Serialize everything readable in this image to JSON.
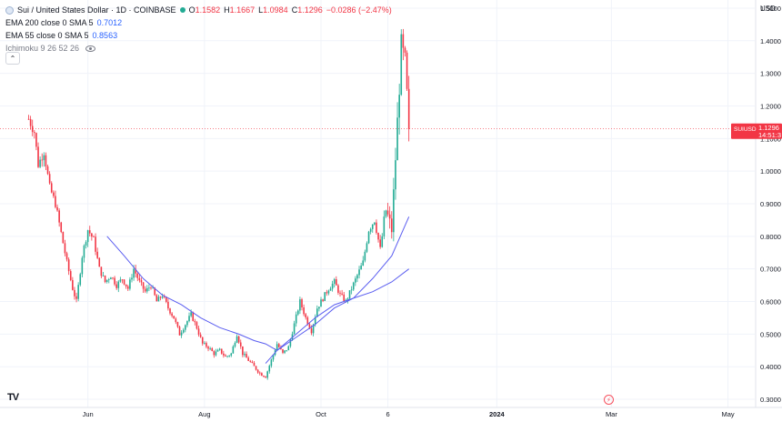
{
  "header": {
    "symbol": "Sui / United States Dollar · 1D · COINBASE",
    "ohlc": [
      {
        "label": "O",
        "value": "1.1582"
      },
      {
        "label": "H",
        "value": "1.1667"
      },
      {
        "label": "L",
        "value": "1.0984"
      },
      {
        "label": "C",
        "value": "1.1296"
      }
    ],
    "change": "−0.0286 (−2.47%)"
  },
  "indicators": [
    {
      "name": "EMA 200 close 0 SMA 5",
      "value": "0.7012"
    },
    {
      "name": "EMA 55 close 0 SMA 5",
      "value": "0.8563"
    },
    {
      "name": "Ichimoku 9 26 52 26",
      "value": ""
    }
  ],
  "currency_label": "USD",
  "price_tag": {
    "symbol": "SUIUSD",
    "price": "1.1296",
    "countdown": "14:51:3"
  },
  "logo_text": "TV",
  "colors": {
    "up": "#22ab94",
    "down": "#f23645",
    "ema": "#5b5ef0",
    "grid": "#f0f3fa",
    "axis_text": "#131722"
  },
  "chart_data": {
    "type": "candlestick",
    "title": "Sui / United States Dollar · 1D · COINBASE",
    "ylim": [
      0.275,
      1.525
    ],
    "yscale": "linear",
    "y_ticks": [
      "1.5000",
      "1.4000",
      "1.3000",
      "1.2000",
      "1.1000",
      "1.0000",
      "0.9000",
      "0.8000",
      "0.7000",
      "0.6000",
      "0.5000",
      "0.4000",
      "0.3000"
    ],
    "y_tick_values": [
      1.5,
      1.4,
      1.3,
      1.2,
      1.1,
      1.0,
      0.9,
      0.8,
      0.7,
      0.6,
      0.5,
      0.4,
      0.3
    ],
    "x_ticks": [
      "Jun",
      "Aug",
      "Oct",
      "6",
      "2024",
      "Mar",
      "May"
    ],
    "x_tick_days": [
      31,
      92,
      153,
      188,
      245,
      305,
      366
    ],
    "x_range_days": [
      -15,
      380
    ],
    "last_price": 1.1296,
    "price_path": [
      [
        0,
        1.16
      ],
      [
        3,
        1.12
      ],
      [
        5,
        1.02
      ],
      [
        8,
        1.06
      ],
      [
        11,
        0.95
      ],
      [
        14,
        0.9
      ],
      [
        17,
        0.81
      ],
      [
        20,
        0.72
      ],
      [
        23,
        0.64
      ],
      [
        25,
        0.6
      ],
      [
        28,
        0.74
      ],
      [
        31,
        0.82
      ],
      [
        34,
        0.79
      ],
      [
        37,
        0.7
      ],
      [
        40,
        0.66
      ],
      [
        43,
        0.68
      ],
      [
        46,
        0.65
      ],
      [
        49,
        0.67
      ],
      [
        52,
        0.64
      ],
      [
        55,
        0.7
      ],
      [
        58,
        0.66
      ],
      [
        61,
        0.63
      ],
      [
        64,
        0.65
      ],
      [
        67,
        0.6
      ],
      [
        70,
        0.62
      ],
      [
        73,
        0.58
      ],
      [
        76,
        0.55
      ],
      [
        79,
        0.5
      ],
      [
        82,
        0.53
      ],
      [
        85,
        0.56
      ],
      [
        88,
        0.52
      ],
      [
        91,
        0.47
      ],
      [
        94,
        0.46
      ],
      [
        97,
        0.44
      ],
      [
        100,
        0.45
      ],
      [
        103,
        0.43
      ],
      [
        106,
        0.44
      ],
      [
        109,
        0.5
      ],
      [
        112,
        0.44
      ],
      [
        115,
        0.42
      ],
      [
        118,
        0.4
      ],
      [
        121,
        0.38
      ],
      [
        124,
        0.37
      ],
      [
        127,
        0.42
      ],
      [
        130,
        0.47
      ],
      [
        133,
        0.44
      ],
      [
        136,
        0.46
      ],
      [
        139,
        0.53
      ],
      [
        142,
        0.6
      ],
      [
        145,
        0.55
      ],
      [
        148,
        0.51
      ],
      [
        151,
        0.58
      ],
      [
        154,
        0.61
      ],
      [
        157,
        0.64
      ],
      [
        160,
        0.66
      ],
      [
        163,
        0.62
      ],
      [
        166,
        0.6
      ],
      [
        169,
        0.64
      ],
      [
        172,
        0.68
      ],
      [
        175,
        0.72
      ],
      [
        178,
        0.82
      ],
      [
        181,
        0.85
      ],
      [
        184,
        0.76
      ],
      [
        187,
        0.88
      ],
      [
        190,
        0.82
      ],
      [
        193,
        1.15
      ],
      [
        195,
        1.38
      ],
      [
        197,
        1.33
      ],
      [
        199,
        1.13
      ]
    ],
    "series": [
      {
        "name": "EMA 200 close 0 SMA 5",
        "color": "#5b5ef0",
        "points": [
          [
            124,
            0.41
          ],
          [
            130,
            0.45
          ],
          [
            140,
            0.5
          ],
          [
            150,
            0.55
          ],
          [
            160,
            0.59
          ],
          [
            170,
            0.61
          ],
          [
            180,
            0.63
          ],
          [
            190,
            0.66
          ],
          [
            199,
            0.7
          ]
        ]
      },
      {
        "name": "EMA 55 close 0 SMA 5",
        "color": "#5b5ef0",
        "points": [
          [
            41,
            0.8
          ],
          [
            50,
            0.74
          ],
          [
            60,
            0.67
          ],
          [
            70,
            0.62
          ],
          [
            80,
            0.59
          ],
          [
            90,
            0.55
          ],
          [
            100,
            0.52
          ],
          [
            110,
            0.5
          ],
          [
            118,
            0.48
          ],
          [
            124,
            0.47
          ],
          [
            130,
            0.45
          ],
          [
            140,
            0.49
          ],
          [
            150,
            0.53
          ],
          [
            160,
            0.58
          ],
          [
            170,
            0.61
          ],
          [
            180,
            0.67
          ],
          [
            190,
            0.74
          ],
          [
            199,
            0.86
          ]
        ]
      }
    ]
  }
}
